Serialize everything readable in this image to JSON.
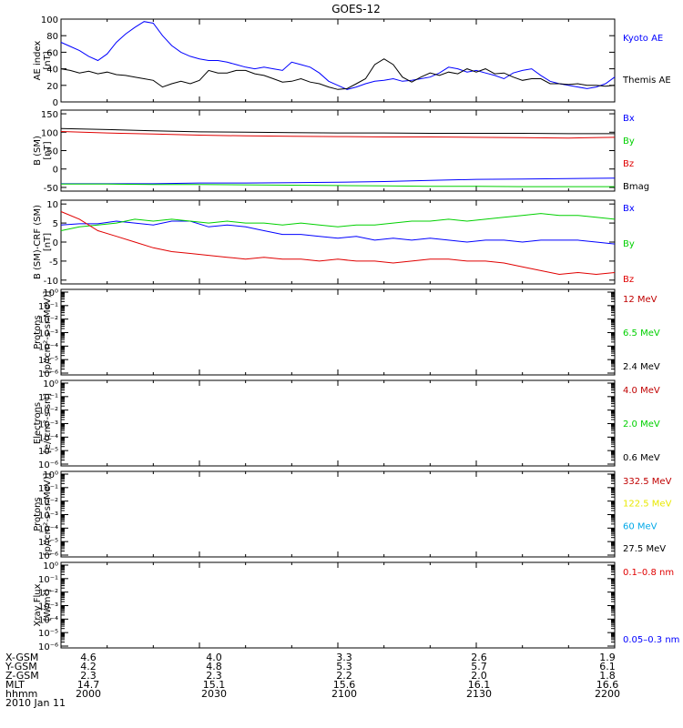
{
  "title": "GOES-12",
  "colors": {
    "black": "#000000",
    "blue": "#0000ff",
    "red": "#e00000",
    "green": "#00d000",
    "yellow": "#e8e800",
    "cyan": "#00a8e8",
    "darkred": "#c00000"
  },
  "x_axis": {
    "rows": [
      {
        "label": "X-GSM",
        "values": [
          "4.6",
          "4.0",
          "3.3",
          "2.6",
          "1.9"
        ]
      },
      {
        "label": "Y-GSM",
        "values": [
          "4.2",
          "4.8",
          "5.3",
          "5.7",
          "6.1"
        ]
      },
      {
        "label": "Z-GSM",
        "values": [
          "2.3",
          "2.3",
          "2.2",
          "2.0",
          "1.8"
        ]
      },
      {
        "label": "MLT",
        "values": [
          "14.7",
          "15.1",
          "15.6",
          "16.1",
          "16.6"
        ]
      },
      {
        "label": "hhmm",
        "values": [
          "2000",
          "2030",
          "2100",
          "2130",
          "2200"
        ]
      }
    ],
    "date": "2010 Jan 11"
  },
  "chart_data": [
    {
      "type": "line",
      "ylabel": "AE index [nT]",
      "ylim": [
        0,
        100
      ],
      "yticks": [
        "0",
        "20",
        "40",
        "60",
        "80",
        "100"
      ],
      "x": [
        2000,
        2002,
        2004,
        2006,
        2008,
        2010,
        2012,
        2014,
        2016,
        2018,
        2020,
        2022,
        2024,
        2026,
        2028,
        2030,
        2032,
        2034,
        2036,
        2038,
        2040,
        2042,
        2044,
        2046,
        2048,
        2050,
        2052,
        2054,
        2056,
        2058,
        2100,
        2102,
        2104,
        2106,
        2108,
        2110,
        2112,
        2114,
        2116,
        2118,
        2120,
        2122,
        2124,
        2126,
        2128,
        2130,
        2132,
        2134,
        2136,
        2138,
        2140,
        2142,
        2144,
        2146,
        2148,
        2150,
        2152,
        2154,
        2156,
        2158,
        2200
      ],
      "series": [
        {
          "name": "Kyoto AE",
          "color": "#0000ff",
          "values": [
            72,
            67,
            62,
            55,
            50,
            58,
            72,
            82,
            90,
            97,
            95,
            80,
            68,
            60,
            55,
            52,
            50,
            50,
            48,
            45,
            42,
            40,
            42,
            40,
            38,
            48,
            45,
            42,
            35,
            25,
            20,
            15,
            18,
            22,
            25,
            26,
            28,
            25,
            26,
            28,
            30,
            35,
            42,
            40,
            36,
            38,
            35,
            32,
            28,
            35,
            38,
            40,
            32,
            25,
            22,
            20,
            18,
            16,
            18,
            22,
            30
          ]
        },
        {
          "name": "Themis AE",
          "color": "#000000",
          "values": [
            40,
            38,
            35,
            37,
            34,
            36,
            33,
            32,
            30,
            28,
            26,
            18,
            22,
            25,
            22,
            26,
            38,
            35,
            35,
            38,
            38,
            34,
            32,
            28,
            24,
            25,
            28,
            24,
            22,
            18,
            15,
            16,
            22,
            28,
            45,
            52,
            45,
            30,
            24,
            30,
            35,
            32,
            36,
            34,
            40,
            36,
            40,
            34,
            35,
            30,
            26,
            28,
            28,
            22,
            22,
            21,
            22,
            20,
            20,
            19,
            20
          ]
        }
      ]
    },
    {
      "type": "line",
      "ylabel": "B (SM) [nT]",
      "ylim": [
        -60,
        160
      ],
      "yticks": [
        "-50",
        "0",
        "50",
        "100",
        "150"
      ],
      "x": [
        2000,
        2010,
        2020,
        2030,
        2040,
        2050,
        2100,
        2110,
        2120,
        2130,
        2140,
        2150,
        2200
      ],
      "series": [
        {
          "name": "Bx",
          "color": "#0000ff",
          "values": [
            -40,
            -40,
            -40,
            -38,
            -38,
            -37,
            -36,
            -34,
            -31,
            -28,
            -27,
            -26,
            -25
          ]
        },
        {
          "name": "By",
          "color": "#00d000",
          "values": [
            -41,
            -41,
            -42,
            -42,
            -43,
            -44,
            -45,
            -46,
            -47,
            -47,
            -48,
            -48,
            -48
          ]
        },
        {
          "name": "Bz",
          "color": "#e00000",
          "values": [
            102,
            98,
            95,
            92,
            90,
            89,
            88,
            87,
            87,
            86,
            85,
            84,
            86
          ]
        },
        {
          "name": "Bmag",
          "color": "#000000",
          "values": [
            110,
            107,
            104,
            101,
            100,
            99,
            98,
            98,
            97,
            97,
            97,
            96,
            96
          ]
        }
      ]
    },
    {
      "type": "line",
      "ylabel": "B (SM)-CRF (SM) [nT]",
      "ylim": [
        -11,
        11
      ],
      "yticks": [
        "-10",
        "-5",
        "0",
        "5",
        "10"
      ],
      "x": [
        2000,
        2004,
        2008,
        2012,
        2016,
        2020,
        2024,
        2028,
        2032,
        2036,
        2040,
        2044,
        2048,
        2052,
        2056,
        2100,
        2104,
        2108,
        2112,
        2116,
        2120,
        2124,
        2128,
        2132,
        2136,
        2140,
        2144,
        2148,
        2152,
        2156,
        2200
      ],
      "series": [
        {
          "name": "Bx",
          "color": "#0000ff",
          "values": [
            4.5,
            4.8,
            4.8,
            5.5,
            5.0,
            4.5,
            5.5,
            5.5,
            4.0,
            4.5,
            4.0,
            3.0,
            2.0,
            2.0,
            1.5,
            1.0,
            1.5,
            0.5,
            1.0,
            0.5,
            1.0,
            0.5,
            0.0,
            0.5,
            0.5,
            0.0,
            0.5,
            0.5,
            0.5,
            0.0,
            -0.5
          ]
        },
        {
          "name": "By",
          "color": "#00d000",
          "values": [
            3.0,
            4.0,
            4.5,
            5.0,
            6.0,
            5.5,
            6.0,
            5.5,
            5.0,
            5.5,
            5.0,
            5.0,
            4.5,
            5.0,
            4.5,
            4.0,
            4.5,
            4.5,
            5.0,
            5.5,
            5.5,
            6.0,
            5.5,
            6.0,
            6.5,
            7.0,
            7.5,
            7.0,
            7.0,
            6.5,
            6.0
          ]
        },
        {
          "name": "Bz",
          "color": "#e00000",
          "values": [
            8.0,
            6.0,
            3.0,
            1.5,
            0.0,
            -1.5,
            -2.5,
            -3.0,
            -3.5,
            -4.0,
            -4.5,
            -4.0,
            -4.5,
            -4.5,
            -5.0,
            -4.5,
            -5.0,
            -5.0,
            -5.5,
            -5.0,
            -4.5,
            -4.5,
            -5.0,
            -5.0,
            -5.5,
            -6.5,
            -7.5,
            -8.5,
            -8.0,
            -8.5,
            -8.0
          ]
        }
      ]
    },
    {
      "type": "line",
      "ylabel": "Protons [p/(cm²-s-sr-MeV)]",
      "yscale": "log",
      "yticks": [
        "10⁰",
        "10⁻¹",
        "10⁻²",
        "10⁻³",
        "10⁻⁴",
        "10⁻⁵",
        "10⁻⁶"
      ],
      "legend": [
        {
          "name": "12 MeV",
          "color": "#c00000"
        },
        {
          "name": "6.5 MeV",
          "color": "#00d000"
        },
        {
          "name": "2.4 MeV",
          "color": "#000000"
        }
      ]
    },
    {
      "type": "line",
      "ylabel": "Electrons [e/(cm²-s-sr)]",
      "yscale": "log",
      "yticks": [
        "10⁰",
        "10⁻¹",
        "10⁻²",
        "10⁻³",
        "10⁻⁴",
        "10⁻⁵",
        "10⁻⁶"
      ],
      "legend": [
        {
          "name": "4.0 MeV",
          "color": "#c00000"
        },
        {
          "name": "2.0 MeV",
          "color": "#00d000"
        },
        {
          "name": "0.6 MeV",
          "color": "#000000"
        }
      ]
    },
    {
      "type": "line",
      "ylabel": "Protons [p/(cm²-s-sr-MeV)]",
      "yscale": "log",
      "yticks": [
        "10⁰",
        "10⁻¹",
        "10⁻²",
        "10⁻³",
        "10⁻⁴",
        "10⁻⁵",
        "10⁻⁶"
      ],
      "legend": [
        {
          "name": "332.5 MeV",
          "color": "#c00000"
        },
        {
          "name": "122.5 MeV",
          "color": "#e8e800"
        },
        {
          "name": "60 MeV",
          "color": "#00a8e8"
        },
        {
          "name": "27.5 MeV",
          "color": "#000000"
        }
      ]
    },
    {
      "type": "line",
      "ylabel": "Xray Flux [W/m²]",
      "yscale": "log",
      "yticks": [
        "10⁰",
        "10⁻¹",
        "10⁻²",
        "10⁻³",
        "10⁻⁴",
        "10⁻⁵",
        "10⁻⁶"
      ],
      "legend": [
        {
          "name": "0.1–0.8 nm",
          "color": "#e00000"
        },
        {
          "name": "0.05–0.3 nm",
          "color": "#0000ff"
        }
      ]
    }
  ]
}
